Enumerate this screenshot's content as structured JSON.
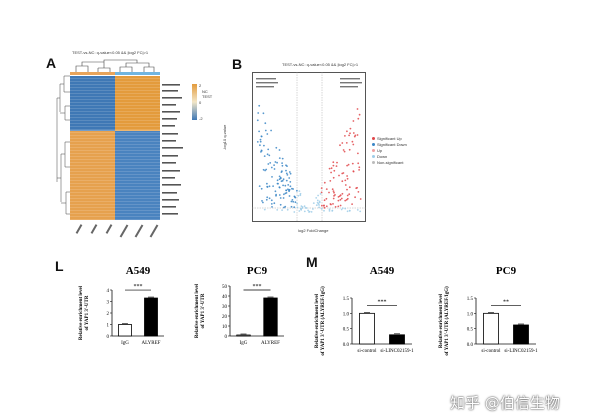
{
  "panels": {
    "A": {
      "letter": "A",
      "title": "TEST-vs-NC: q-value<0.05 && |log2 FC|>1",
      "legend_ticks": [
        "2",
        "0",
        "-2"
      ],
      "legend_groups": [
        "NC",
        "TEST"
      ],
      "colors": {
        "high": "#e39b3c",
        "mid": "#f2e6c8",
        "low": "#3f78b5"
      }
    },
    "B": {
      "letter": "B",
      "title": "TEST-vs-NC: q-value<0.05 && |log2 FC|>1",
      "xlabel": "log2 FoldChange",
      "ylabel": "-log10 q-value",
      "legend": [
        "Significant Up",
        "Significant Down",
        "Up",
        "Down",
        "Non-significant"
      ],
      "colors": {
        "up": "#e0474a",
        "down": "#3a86c6",
        "nonsig": "#9ecde8"
      }
    },
    "L": {
      "letter": "L",
      "ylabel_line1": "Relative enrichment level",
      "ylabel_line2": "of YAP1 3'-UTR"
    },
    "M": {
      "letter": "M",
      "ylabel_line1": "Relative enrichment level",
      "ylabel_line2": "of YAP1 3'-UTR (ALYREF/IgG)"
    }
  },
  "chart_data": [
    {
      "type": "bar",
      "title": "A549",
      "categories": [
        "IgG",
        "ALYREF"
      ],
      "values": [
        1.0,
        3.3
      ],
      "ylim": [
        0,
        4
      ],
      "yticks": [
        "0",
        "1",
        "2",
        "3",
        "4"
      ],
      "significance": "***"
    },
    {
      "type": "bar",
      "title": "PC9",
      "categories": [
        "IgG",
        "ALYREF"
      ],
      "values": [
        1.0,
        38
      ],
      "ylim": [
        0,
        50
      ],
      "yticks": [
        "0",
        "10",
        "20",
        "30",
        "40",
        "50"
      ],
      "significance": "***"
    },
    {
      "type": "bar",
      "title": "A549",
      "categories": [
        "si-control",
        "si-LINC02159-1"
      ],
      "values": [
        1.0,
        0.3
      ],
      "ylim": [
        0,
        1.5
      ],
      "yticks": [
        "0.0",
        "0.5",
        "1.0",
        "1.5"
      ],
      "significance": "***"
    },
    {
      "type": "bar",
      "title": "PC9",
      "categories": [
        "si-control",
        "si-LINC02159-1"
      ],
      "values": [
        1.0,
        0.62
      ],
      "ylim": [
        0,
        1.5
      ],
      "yticks": [
        "0.0",
        "0.5",
        "1.0",
        "1.5"
      ],
      "significance": "**"
    }
  ],
  "watermark": "知乎 @伯信生物"
}
